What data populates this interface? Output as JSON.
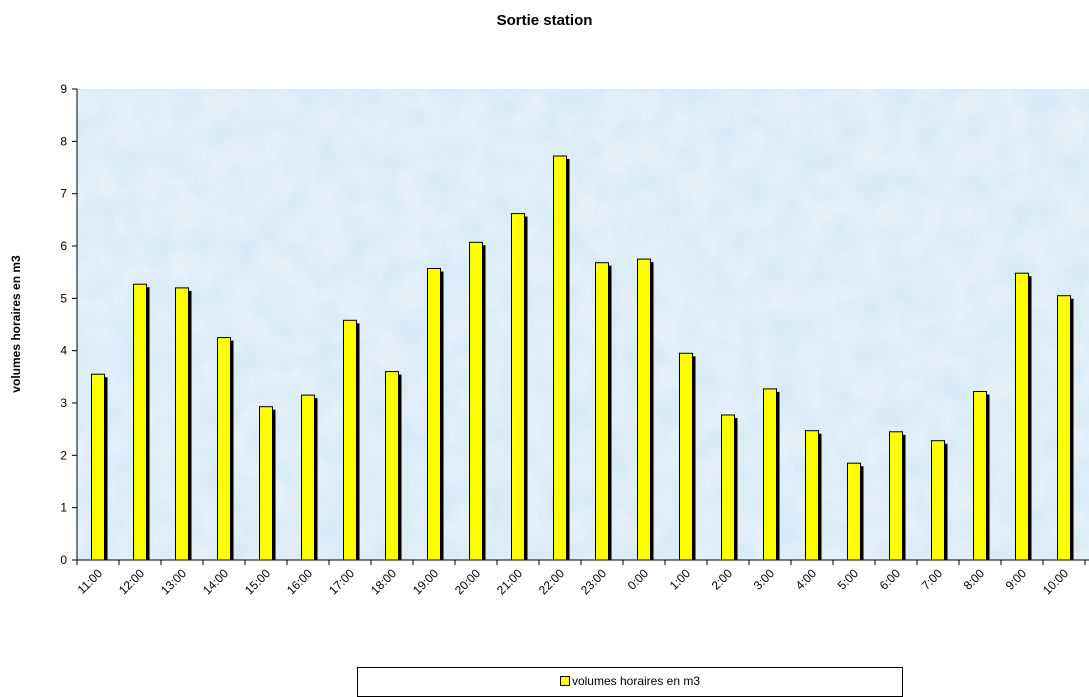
{
  "chart_data": {
    "type": "bar",
    "title": "Sortie station",
    "xlabel": "",
    "ylabel": "volumes horaires en m3",
    "ylim": [
      0,
      9
    ],
    "yticks": [
      "0",
      "1",
      "2",
      "3",
      "4",
      "5",
      "6",
      "7",
      "8",
      "9"
    ],
    "categories": [
      "11:00",
      "12:00",
      "13:00",
      "14:00",
      "15:00",
      "16:00",
      "17:00",
      "18:00",
      "19:00",
      "20:00",
      "21:00",
      "22:00",
      "23:00",
      "0:00",
      "1:00",
      "2:00",
      "3:00",
      "4:00",
      "5:00",
      "6:00",
      "7:00",
      "8:00",
      "9:00",
      "10:00"
    ],
    "series": [
      {
        "name": "volumes horaires en m3",
        "color": "#ffff00",
        "values": [
          3.55,
          5.27,
          5.2,
          4.25,
          2.93,
          3.15,
          4.58,
          3.6,
          5.57,
          6.07,
          6.62,
          7.72,
          5.68,
          5.75,
          3.95,
          2.77,
          3.27,
          2.47,
          1.85,
          2.45,
          2.28,
          3.22,
          5.48,
          5.05
        ]
      }
    ],
    "grid": false,
    "legend_position": "bottom",
    "plot_background": "#d2e7f6"
  }
}
